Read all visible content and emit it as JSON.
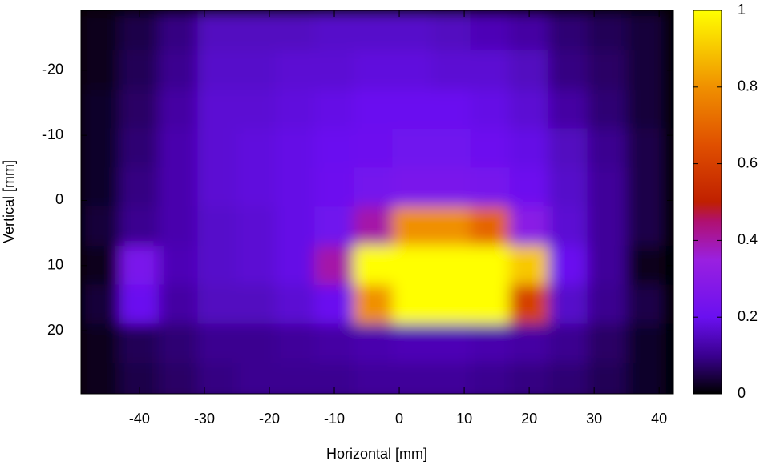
{
  "chart_data": {
    "type": "heatmap",
    "xlabel": "Horizontal [mm]",
    "ylabel": "Vertical [mm]",
    "xlim": [
      -49,
      42.2
    ],
    "ylim": [
      -29.2,
      29.7
    ],
    "xticks": [
      -40,
      -30,
      -20,
      -10,
      0,
      10,
      20,
      30,
      40
    ],
    "yticks": [
      -20,
      -10,
      0,
      10,
      20
    ],
    "y_inverted": true,
    "x": [
      -46,
      -40,
      -34,
      -28,
      -22,
      -16,
      -10,
      -4,
      2,
      8,
      14,
      20,
      26,
      32,
      38
    ],
    "y": [
      -26,
      -20,
      -14,
      -8,
      -2,
      4,
      10,
      16,
      22,
      28
    ],
    "z": [
      [
        0.02,
        0.05,
        0.09,
        0.15,
        0.15,
        0.15,
        0.16,
        0.16,
        0.16,
        0.15,
        0.14,
        0.12,
        0.08,
        0.06,
        0.04
      ],
      [
        0.02,
        0.06,
        0.1,
        0.16,
        0.16,
        0.17,
        0.17,
        0.18,
        0.18,
        0.17,
        0.17,
        0.15,
        0.09,
        0.07,
        0.04
      ],
      [
        0.03,
        0.07,
        0.12,
        0.17,
        0.17,
        0.18,
        0.19,
        0.2,
        0.2,
        0.2,
        0.19,
        0.17,
        0.12,
        0.08,
        0.04
      ],
      [
        0.03,
        0.08,
        0.13,
        0.17,
        0.18,
        0.19,
        0.2,
        0.21,
        0.22,
        0.22,
        0.21,
        0.19,
        0.15,
        0.1,
        0.05
      ],
      [
        0.03,
        0.09,
        0.13,
        0.17,
        0.18,
        0.19,
        0.21,
        0.23,
        0.25,
        0.25,
        0.24,
        0.21,
        0.16,
        0.11,
        0.05
      ],
      [
        0.04,
        0.1,
        0.13,
        0.16,
        0.17,
        0.19,
        0.22,
        0.4,
        0.8,
        0.8,
        0.7,
        0.3,
        0.17,
        0.11,
        0.05
      ],
      [
        0.02,
        0.25,
        0.14,
        0.16,
        0.17,
        0.19,
        0.4,
        1,
        1,
        1,
        1,
        0.9,
        0.2,
        0.11,
        0.02
      ],
      [
        0.04,
        0.2,
        0.12,
        0.15,
        0.15,
        0.17,
        0.2,
        0.8,
        1,
        1,
        1,
        0.6,
        0.16,
        0.1,
        0.05
      ],
      [
        0.02,
        0.06,
        0.08,
        0.1,
        0.1,
        0.11,
        0.12,
        0.13,
        0.14,
        0.14,
        0.13,
        0.12,
        0.1,
        0.07,
        0.03
      ],
      [
        0.02,
        0.05,
        0.07,
        0.09,
        0.1,
        0.1,
        0.1,
        0.11,
        0.11,
        0.11,
        0.1,
        0.09,
        0.08,
        0.06,
        0.03
      ]
    ],
    "zlim": [
      0,
      1
    ],
    "zticks": [
      0,
      0.2,
      0.4,
      0.6,
      0.8,
      1
    ],
    "colorscale": [
      [
        0,
        "#000000"
      ],
      [
        0.1,
        "#3a0090"
      ],
      [
        0.2,
        "#6a10f0"
      ],
      [
        0.35,
        "#9a20e0"
      ],
      [
        0.45,
        "#b01070"
      ],
      [
        0.5,
        "#c02000"
      ],
      [
        0.65,
        "#e05000"
      ],
      [
        0.8,
        "#f09000"
      ],
      [
        1,
        "#ffff00"
      ]
    ]
  }
}
